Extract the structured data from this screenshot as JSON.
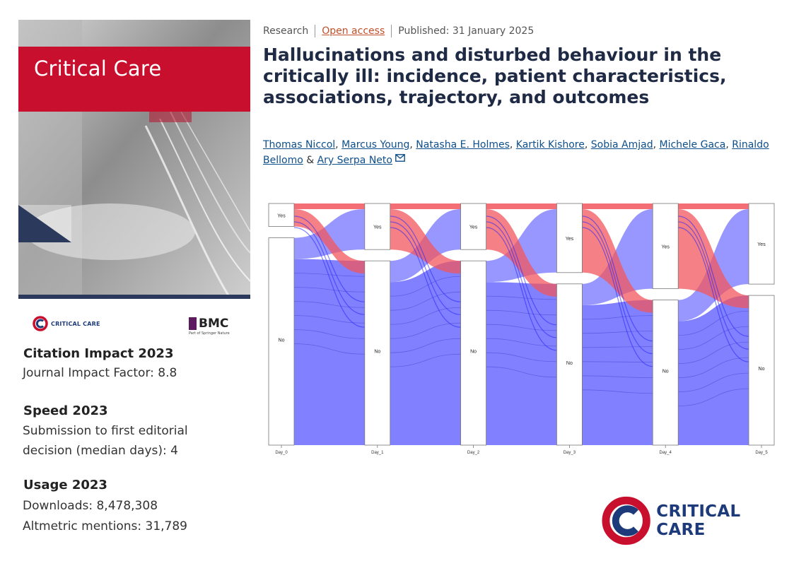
{
  "cover": {
    "journal_name": "Critical Care"
  },
  "logos": {
    "small_journal_logo_text": "CRITICAL CARE",
    "publisher_name": "BMC",
    "publisher_tagline": "Part of Springer Nature",
    "big_journal_logo_text": "CRITICAL CARE"
  },
  "metrics": {
    "citation_title": "Citation Impact 2023",
    "citation_value": "Journal Impact Factor: 8.8",
    "speed_title": "Speed 2023",
    "speed_line1": "Submission to first editorial",
    "speed_line2": "decision (median days): 4",
    "usage_title": "Usage 2023",
    "downloads": "Downloads: 8,478,308",
    "altmetric": "Altmetric mentions: 31,789"
  },
  "article": {
    "type": "Research",
    "access": "Open access",
    "published": "Published: 31 January 2025",
    "title": "Hallucinations and disturbed behaviour in the critically ill: incidence, patient characteristics, associations, trajectory, and outcomes",
    "authors": [
      "Thomas Niccol",
      "Marcus Young",
      "Natasha E. Holmes",
      "Kartik Kishore",
      "Sobia Amjad",
      "Michele Gaca",
      "Rinaldo Bellomo",
      "Ary Serpa Neto"
    ],
    "mail_icon": "envelope-icon"
  },
  "chart_data": {
    "type": "alluvial",
    "title": "",
    "xlabel": "",
    "ylabel": "",
    "categories": [
      "Day_0",
      "Day_1",
      "Day_2",
      "Day_3",
      "Day_4",
      "Day_5"
    ],
    "states": [
      "Yes",
      "No"
    ],
    "yes_fraction": [
      0.1,
      0.2,
      0.2,
      0.3,
      0.37,
      0.35
    ],
    "colors": {
      "hallucination_flow": "#f2555d",
      "no_flow": "#6b6bff",
      "node": "#ffffff"
    }
  }
}
